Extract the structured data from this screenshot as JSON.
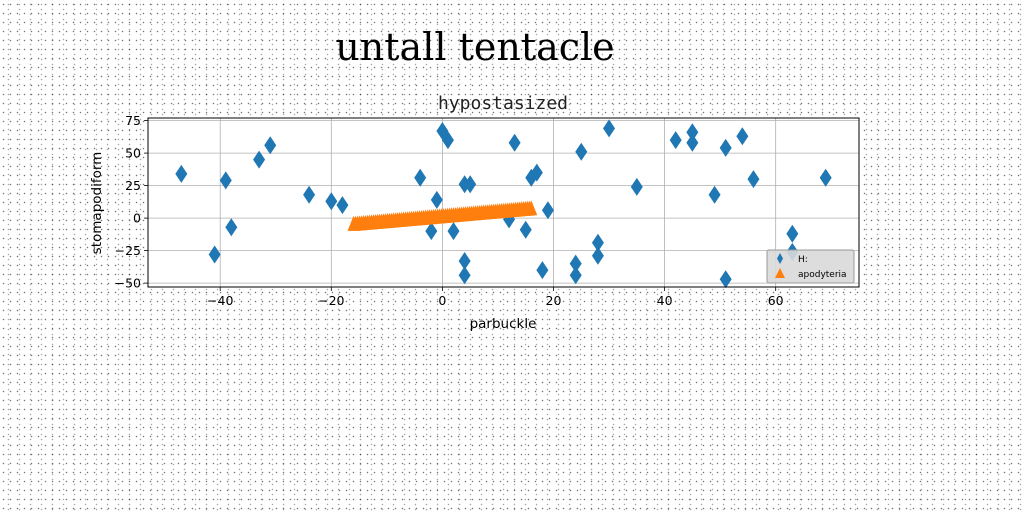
{
  "chart_data": {
    "type": "scatter",
    "suptitle": "untall tentacle",
    "title": "hypostasized",
    "xlabel": "parbuckle",
    "ylabel": "stomapodiform",
    "xlim": [
      -53,
      75
    ],
    "ylim": [
      -53,
      77
    ],
    "xticks": [
      -40,
      -20,
      0,
      20,
      40,
      60
    ],
    "yticks": [
      -50,
      -25,
      0,
      25,
      50,
      75
    ],
    "xtick_labels": [
      "−40",
      "−20",
      "0",
      "20",
      "40",
      "60"
    ],
    "ytick_labels": [
      "−50",
      "−25",
      "0",
      "25",
      "50",
      "75"
    ],
    "grid": true,
    "legend_position": "lower-right",
    "series": [
      {
        "name": "H:",
        "marker": "thin_diamond",
        "color": "#1f77b4",
        "x": [
          -47,
          -39,
          -38,
          -33,
          -31,
          -24,
          -20,
          -18,
          -4,
          -1,
          0,
          1,
          -2,
          2,
          4,
          5,
          4,
          4,
          12,
          13,
          15,
          16,
          17,
          18,
          19,
          25,
          24,
          24,
          28,
          28,
          30,
          35,
          42,
          45,
          45,
          49,
          51,
          54,
          56,
          63,
          63,
          69,
          -41,
          51
        ],
        "y": [
          34,
          29,
          -7,
          45,
          56,
          18,
          13,
          10,
          31,
          14,
          67,
          60,
          -10,
          -10,
          26,
          26,
          -33,
          -44,
          -1,
          58,
          -9,
          31,
          35,
          -40,
          6,
          51,
          -35,
          -44,
          -19,
          -29,
          69,
          24,
          60,
          66,
          58,
          18,
          54,
          63,
          30,
          -12,
          -26,
          31,
          -28,
          -47
        ]
      },
      {
        "name": "apodyteria",
        "marker": "triangle_up",
        "color": "#ff7f0e",
        "x_range": [
          -16,
          16
        ],
        "y_at_start": -6,
        "y_at_end": 6,
        "point_count": 90
      }
    ]
  }
}
